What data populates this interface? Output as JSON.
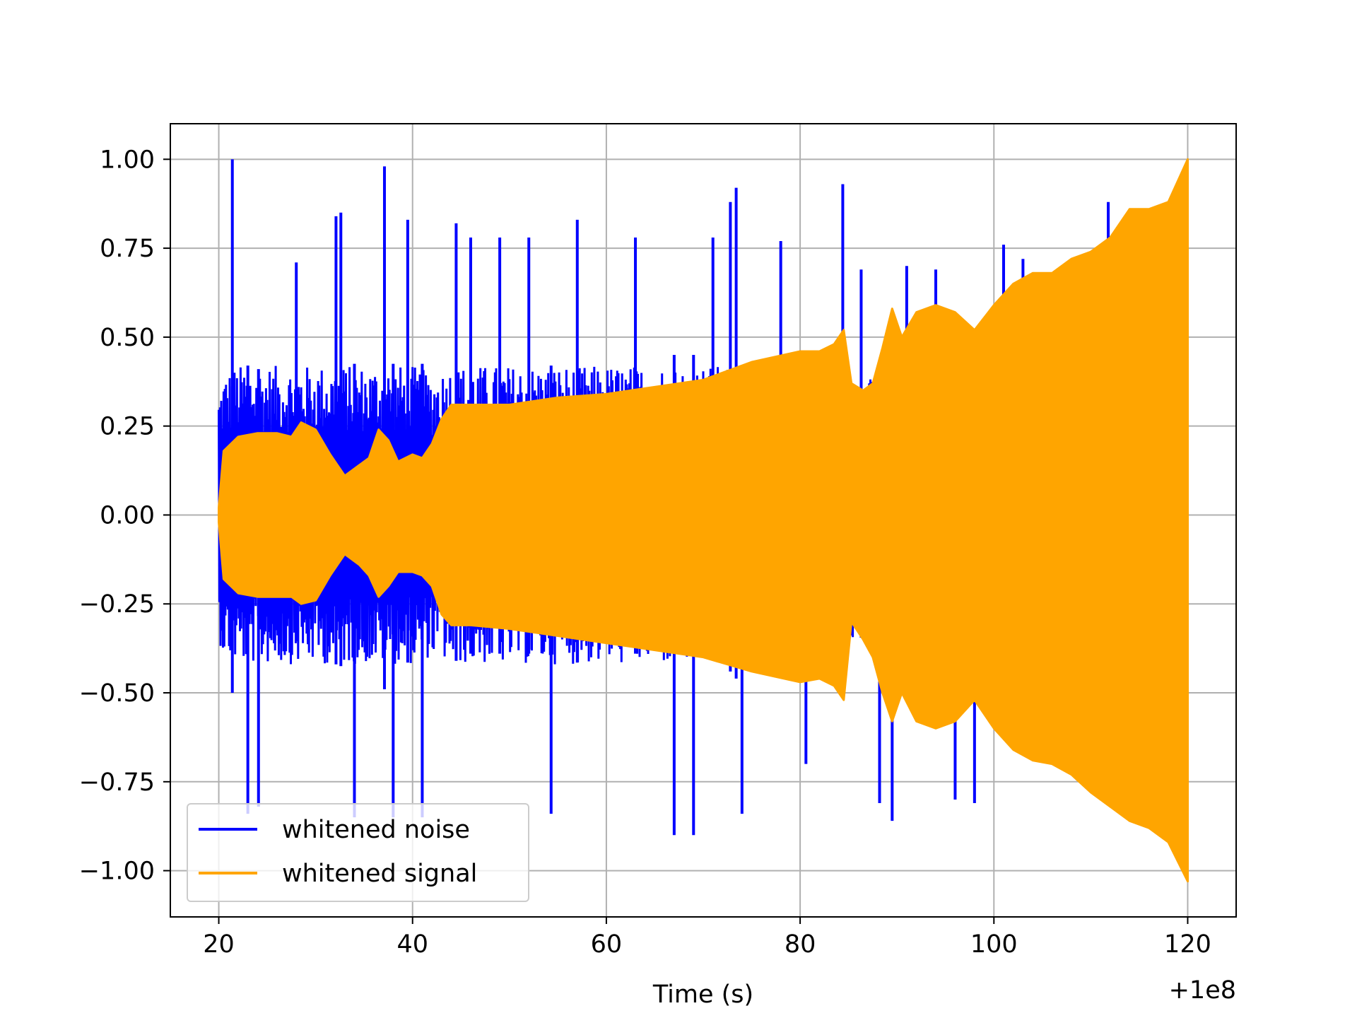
{
  "chart_data": {
    "type": "line",
    "title": "",
    "xlabel": "Time (s)",
    "ylabel": "",
    "x_offset_label": "+1e8",
    "xlim": [
      15,
      125
    ],
    "ylim": [
      -1.13,
      1.1
    ],
    "xticks": [
      20,
      40,
      60,
      80,
      100,
      120
    ],
    "xtick_labels": [
      "20",
      "40",
      "60",
      "80",
      "100",
      "120"
    ],
    "yticks": [
      1.0,
      0.75,
      0.5,
      0.25,
      0.0,
      -0.25,
      -0.5,
      -0.75,
      -1.0
    ],
    "ytick_labels": [
      "1.00",
      "0.75",
      "0.50",
      "0.25",
      "0.00",
      "−0.25",
      "−0.50",
      "−0.75",
      "−1.00"
    ],
    "grid": true,
    "legend_position": "lower-left",
    "series": [
      {
        "name": "whitened noise",
        "color": "#0000ff",
        "envelope_upper": {
          "x": [
            20,
            20.5,
            22,
            24,
            26,
            28,
            30,
            32,
            34,
            36,
            38,
            40,
            42,
            44,
            46,
            48,
            50,
            55,
            60,
            65,
            70,
            75,
            80,
            84,
            86,
            88,
            90,
            95,
            100,
            105,
            110,
            115,
            120
          ],
          "y": [
            0.35,
            0.4,
            0.42,
            0.42,
            0.42,
            0.42,
            0.42,
            0.42,
            0.42,
            0.42,
            0.42,
            0.42,
            0.4,
            0.42,
            0.42,
            0.42,
            0.42,
            0.42,
            0.42,
            0.42,
            0.42,
            0.42,
            0.42,
            0.42,
            0.33,
            0.42,
            0.45,
            0.5,
            0.55,
            0.6,
            0.62,
            0.65,
            0.7
          ]
        },
        "spikes": [
          {
            "x": 21.4,
            "y": 1.0
          },
          {
            "x": 23.0,
            "y": -0.84
          },
          {
            "x": 24.1,
            "y": -0.82
          },
          {
            "x": 28.0,
            "y": 0.71
          },
          {
            "x": 32.1,
            "y": 0.84
          },
          {
            "x": 32.6,
            "y": 0.85
          },
          {
            "x": 34.0,
            "y": -0.85
          },
          {
            "x": 37.1,
            "y": 0.98
          },
          {
            "x": 38.0,
            "y": -0.85
          },
          {
            "x": 39.5,
            "y": 0.83
          },
          {
            "x": 41.0,
            "y": -0.85
          },
          {
            "x": 44.5,
            "y": 0.82
          },
          {
            "x": 46.0,
            "y": 0.78
          },
          {
            "x": 49.0,
            "y": 0.78
          },
          {
            "x": 52.0,
            "y": 0.78
          },
          {
            "x": 54.3,
            "y": -0.84
          },
          {
            "x": 57.0,
            "y": 0.83
          },
          {
            "x": 63.0,
            "y": 0.78
          },
          {
            "x": 67.0,
            "y": -0.9
          },
          {
            "x": 69.0,
            "y": -0.9
          },
          {
            "x": 71.0,
            "y": 0.78
          },
          {
            "x": 72.8,
            "y": 0.88
          },
          {
            "x": 73.4,
            "y": 0.92
          },
          {
            "x": 74.0,
            "y": -0.84
          },
          {
            "x": 78.0,
            "y": 0.77
          },
          {
            "x": 80.6,
            "y": -0.7
          },
          {
            "x": 84.4,
            "y": 0.93
          },
          {
            "x": 86.3,
            "y": 0.69
          },
          {
            "x": 88.2,
            "y": -0.81
          },
          {
            "x": 89.5,
            "y": -0.86
          },
          {
            "x": 91.0,
            "y": 0.7
          },
          {
            "x": 94.0,
            "y": 0.69
          },
          {
            "x": 96.0,
            "y": -0.8
          },
          {
            "x": 98.0,
            "y": -0.81
          },
          {
            "x": 101.0,
            "y": 0.76
          },
          {
            "x": 103.0,
            "y": 0.72
          },
          {
            "x": 111.8,
            "y": 0.88
          }
        ]
      },
      {
        "name": "whitened signal",
        "color": "#ffa500",
        "envelope_upper": {
          "x": [
            20,
            20.5,
            22,
            24,
            26,
            27.5,
            28.5,
            30,
            31.5,
            33,
            34.5,
            35.5,
            36.5,
            37.5,
            38.5,
            40,
            41,
            42,
            43,
            44,
            46,
            50,
            55,
            60,
            65,
            70,
            75,
            80,
            82,
            83.5,
            84.5,
            85.3,
            86.5,
            87.5,
            88.5,
            89.5,
            90.5,
            92,
            94,
            96,
            98,
            100,
            102,
            104,
            106,
            108,
            110,
            112,
            114,
            116,
            118,
            120
          ],
          "y": [
            0.02,
            0.18,
            0.22,
            0.23,
            0.23,
            0.22,
            0.26,
            0.24,
            0.17,
            0.11,
            0.14,
            0.16,
            0.24,
            0.21,
            0.15,
            0.17,
            0.16,
            0.2,
            0.27,
            0.31,
            0.31,
            0.31,
            0.33,
            0.34,
            0.36,
            0.38,
            0.43,
            0.46,
            0.46,
            0.48,
            0.52,
            0.37,
            0.35,
            0.37,
            0.47,
            0.58,
            0.5,
            0.57,
            0.59,
            0.57,
            0.52,
            0.59,
            0.65,
            0.68,
            0.68,
            0.72,
            0.74,
            0.78,
            0.86,
            0.86,
            0.88,
            1.0
          ]
        },
        "envelope_lower": {
          "x": [
            20,
            20.5,
            22,
            24,
            26,
            27.5,
            28.5,
            30,
            31.5,
            33,
            34.5,
            35.5,
            36.5,
            37.5,
            38.5,
            40,
            41,
            42,
            43,
            44,
            46,
            50,
            55,
            60,
            65,
            70,
            75,
            80,
            82,
            83.5,
            84.5,
            85.3,
            86.5,
            87.5,
            88.5,
            89.5,
            90.5,
            92,
            94,
            96,
            98,
            100,
            102,
            104,
            106,
            108,
            110,
            112,
            114,
            116,
            118,
            120
          ],
          "y": [
            -0.02,
            -0.18,
            -0.22,
            -0.23,
            -0.23,
            -0.23,
            -0.25,
            -0.24,
            -0.17,
            -0.11,
            -0.14,
            -0.17,
            -0.23,
            -0.2,
            -0.16,
            -0.16,
            -0.17,
            -0.2,
            -0.28,
            -0.31,
            -0.31,
            -0.32,
            -0.34,
            -0.36,
            -0.38,
            -0.4,
            -0.44,
            -0.47,
            -0.46,
            -0.48,
            -0.52,
            -0.3,
            -0.35,
            -0.4,
            -0.5,
            -0.58,
            -0.5,
            -0.58,
            -0.6,
            -0.58,
            -0.52,
            -0.6,
            -0.66,
            -0.69,
            -0.7,
            -0.73,
            -0.78,
            -0.82,
            -0.86,
            -0.88,
            -0.92,
            -1.03
          ]
        }
      }
    ]
  }
}
